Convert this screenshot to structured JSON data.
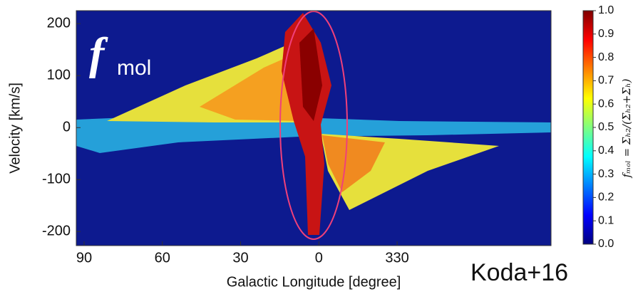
{
  "chart_data": {
    "type": "heatmap",
    "x_label": "Galactic Longitude [degree]",
    "y_label": "Velocity [km/s]",
    "xlim": [
      93,
      -89
    ],
    "xticks": [
      90,
      60,
      30,
      0,
      {
        "value": -30,
        "label": "330"
      }
    ],
    "ylim": [
      -227,
      225
    ],
    "yticks": [
      200,
      100,
      0,
      -100,
      -200
    ],
    "colormap": "jet",
    "colorbar_label": "fₘₒₗ = Σₕ₂/(Σₕ₂+Σₕ)",
    "clim": [
      0,
      1
    ],
    "cticks": [
      {
        "value": 1,
        "label": "1.0"
      },
      0.9,
      0.8,
      0.7,
      0.6,
      0.5,
      0.4,
      0.3,
      0.2,
      0.1,
      {
        "value": 0,
        "label": "0.0"
      }
    ],
    "panel_label": {
      "symbol": "f",
      "subscript": "mol"
    },
    "credit": "Koda+16"
  }
}
